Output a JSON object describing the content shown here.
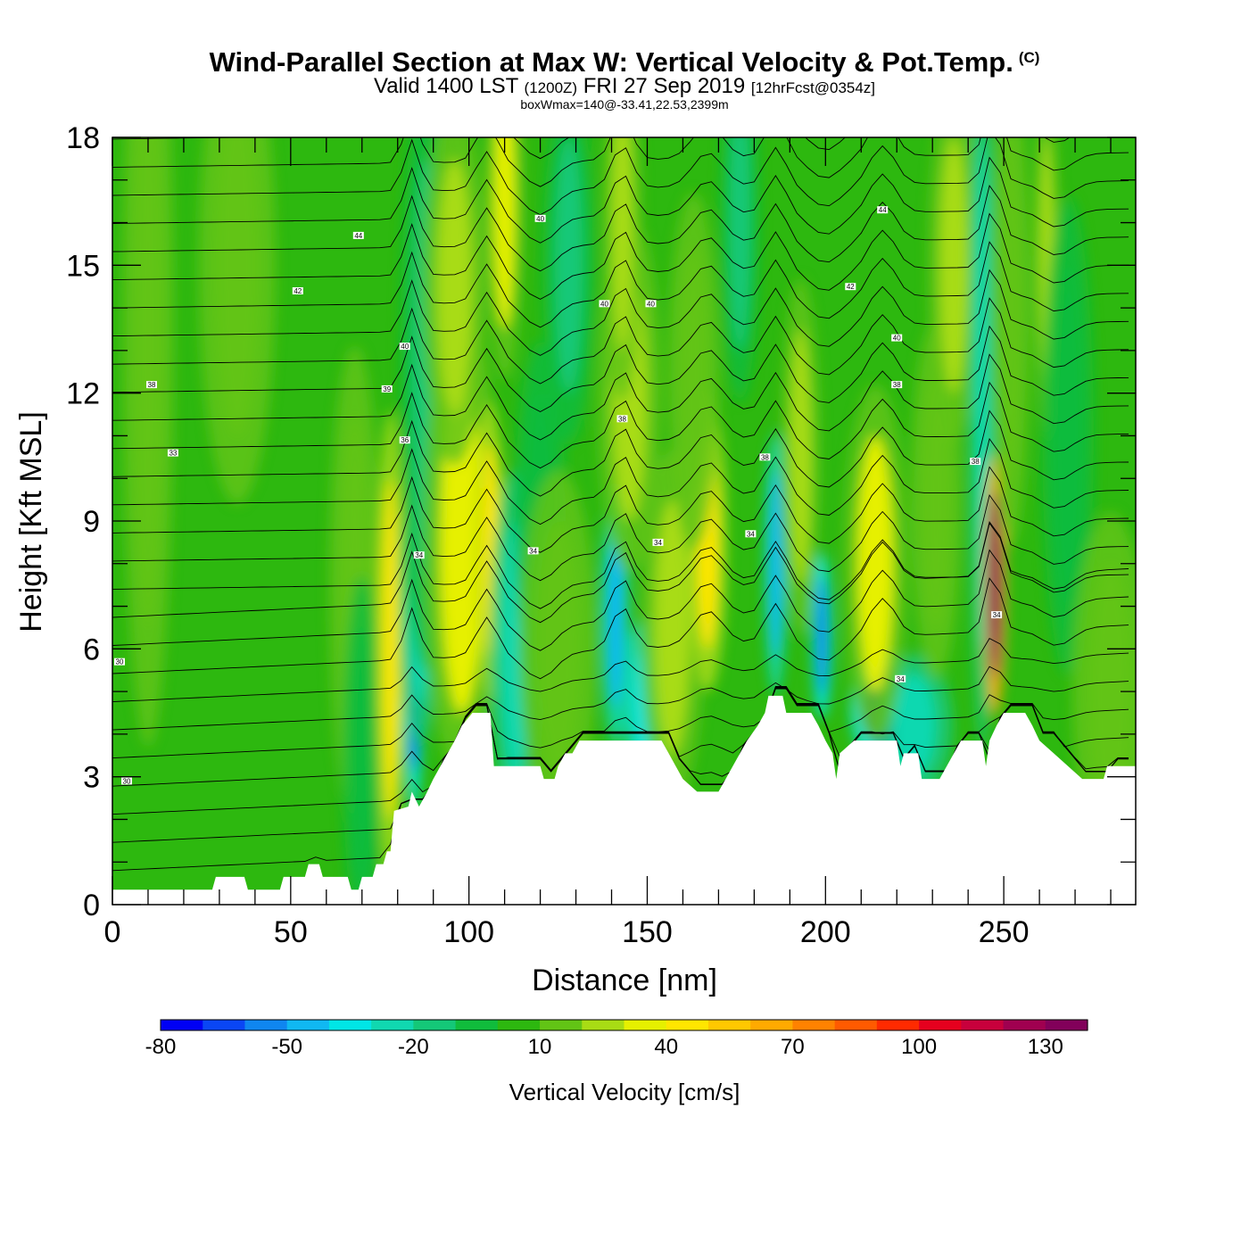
{
  "header": {
    "title": "Wind-Parallel Section at Max W: Vertical Velocity & Pot.Temp.",
    "copyright": "(C)",
    "valid_prefix": "Valid 1400 LST",
    "valid_zulu": "(1200Z)",
    "valid_date": "FRI 27 Sep 2019",
    "forecast": "[12hrFcst@0354z]",
    "boxinfo": "boxWmax=140@-33.41,22.53,2399m"
  },
  "chart_data": {
    "type": "heatmap",
    "title": "Wind-Parallel Section at Max W: Vertical Velocity & Pot.Temp.",
    "xlabel": "Distance [nm]",
    "ylabel": "Height [Kft MSL]",
    "xlim": [
      0,
      287
    ],
    "ylim": [
      0,
      18
    ],
    "xticks": [
      "0",
      "50",
      "100",
      "150",
      "200",
      "250"
    ],
    "yticks": [
      "0",
      "3",
      "6",
      "9",
      "12",
      "15",
      "18"
    ],
    "colorbar": {
      "label": "Vertical Velocity [cm/s]",
      "ticks": [
        "-80",
        "-50",
        "-20",
        "10",
        "40",
        "70",
        "100",
        "130"
      ],
      "levels": [
        -80,
        -70,
        -60,
        -50,
        -40,
        -30,
        -20,
        -10,
        0,
        10,
        20,
        30,
        40,
        50,
        60,
        70,
        80,
        90,
        100,
        110,
        120,
        130,
        140
      ],
      "colors": [
        "#0000f5",
        "#0a46f5",
        "#0f86f0",
        "#10b8f2",
        "#00e6e6",
        "#10d8b0",
        "#14c878",
        "#10bc3c",
        "#2db80f",
        "#62c415",
        "#a8dc14",
        "#e6f000",
        "#ffe600",
        "#ffc800",
        "#ffaa00",
        "#ff8200",
        "#ff5a00",
        "#ff2a00",
        "#e6001e",
        "#c8003c",
        "#a00050",
        "#82005a"
      ]
    },
    "background_value": 5,
    "features": [
      {
        "x": 10,
        "z": 13.5,
        "w": 4,
        "h": 7,
        "value": 12
      },
      {
        "x": 35,
        "z": 15,
        "w": 6,
        "h": 4,
        "value": 12
      },
      {
        "x": 68,
        "z": 7.5,
        "w": 4,
        "h": 4,
        "value": 13
      },
      {
        "x": 70,
        "z": 3.5,
        "w": 3,
        "h": 3,
        "value": -5
      },
      {
        "x": 78,
        "z": 6,
        "w": 2.2,
        "h": 4,
        "value": 45
      },
      {
        "x": 84.5,
        "z": 5.3,
        "w": 1.6,
        "h": 2.2,
        "value": -68
      },
      {
        "x": 86,
        "z": 7.2,
        "w": 3,
        "h": 2.5,
        "value": -25
      },
      {
        "x": 88,
        "z": 12.5,
        "w": 4,
        "h": 5,
        "value": -15
      },
      {
        "x": 97,
        "z": 7.2,
        "w": 3.5,
        "h": 2.2,
        "value": 58
      },
      {
        "x": 98,
        "z": 8.5,
        "w": 6,
        "h": 4,
        "value": 35
      },
      {
        "x": 96,
        "z": 14.5,
        "w": 5,
        "h": 3,
        "value": 22
      },
      {
        "x": 106,
        "z": 8.3,
        "w": 2.2,
        "h": 2.5,
        "value": 42
      },
      {
        "x": 110,
        "z": 16.5,
        "w": 3,
        "h": 3,
        "value": 38
      },
      {
        "x": 113,
        "z": 6,
        "w": 4,
        "h": 3,
        "value": -22
      },
      {
        "x": 120,
        "z": 9,
        "w": 4,
        "h": 3,
        "value": -10
      },
      {
        "x": 125,
        "z": 6,
        "w": 6,
        "h": 3,
        "value": 15
      },
      {
        "x": 128,
        "z": 15,
        "w": 4,
        "h": 3,
        "value": -15
      },
      {
        "x": 141,
        "z": 6.8,
        "w": 2.2,
        "h": 2.2,
        "value": -48
      },
      {
        "x": 150,
        "z": 4.8,
        "w": 4,
        "h": 1.4,
        "value": -38
      },
      {
        "x": 145,
        "z": 12,
        "w": 5,
        "h": 3,
        "value": 20
      },
      {
        "x": 143,
        "z": 16,
        "w": 3,
        "h": 3,
        "value": 28
      },
      {
        "x": 157,
        "z": 6.5,
        "w": 5,
        "h": 3,
        "value": 22
      },
      {
        "x": 167,
        "z": 8.5,
        "w": 3,
        "h": 2.5,
        "value": 45
      },
      {
        "x": 163,
        "z": 12.5,
        "w": 4,
        "h": 3,
        "value": 15
      },
      {
        "x": 176,
        "z": 16,
        "w": 3,
        "h": 3,
        "value": -18
      },
      {
        "x": 186,
        "z": 8,
        "w": 1.8,
        "h": 2.2,
        "value": -50
      },
      {
        "x": 193,
        "z": 10.5,
        "w": 3,
        "h": 3,
        "value": 22
      },
      {
        "x": 199,
        "z": 6.3,
        "w": 1.6,
        "h": 1.4,
        "value": -55
      },
      {
        "x": 216,
        "z": 4.6,
        "w": 5,
        "h": 1,
        "value": -65
      },
      {
        "x": 225,
        "z": 4.2,
        "w": 6,
        "h": 1.2,
        "value": -30
      },
      {
        "x": 214,
        "z": 8,
        "w": 5,
        "h": 3,
        "value": 32
      },
      {
        "x": 231,
        "z": 9.5,
        "w": 4,
        "h": 3,
        "value": 15
      },
      {
        "x": 236,
        "z": 15,
        "w": 4,
        "h": 3,
        "value": 22
      },
      {
        "x": 244,
        "z": 12,
        "w": 2,
        "h": 6,
        "value": -25
      },
      {
        "x": 247.5,
        "z": 7.5,
        "w": 1.8,
        "h": 2.2,
        "value": 132
      },
      {
        "x": 252,
        "z": 14,
        "w": 3,
        "h": 4,
        "value": 18
      },
      {
        "x": 262,
        "z": 15,
        "w": 2,
        "h": 3,
        "value": 25
      },
      {
        "x": 268,
        "z": 11,
        "w": 4,
        "h": 4,
        "value": -10
      },
      {
        "x": 280,
        "z": 5,
        "w": 6,
        "h": 3,
        "value": 10
      }
    ],
    "terrain": [
      [
        0,
        0.35
      ],
      [
        28,
        0.35
      ],
      [
        29,
        0.65
      ],
      [
        37,
        0.65
      ],
      [
        38,
        0.35
      ],
      [
        47,
        0.35
      ],
      [
        48,
        0.65
      ],
      [
        54,
        0.65
      ],
      [
        55,
        0.95
      ],
      [
        58,
        0.95
      ],
      [
        59,
        0.65
      ],
      [
        66,
        0.65
      ],
      [
        67,
        0.35
      ],
      [
        69,
        0.35
      ],
      [
        70,
        0.65
      ],
      [
        73,
        0.65
      ],
      [
        74,
        0.95
      ],
      [
        76,
        0.95
      ],
      [
        77,
        1.25
      ],
      [
        78,
        1.25
      ],
      [
        79,
        2.2
      ],
      [
        83,
        2.3
      ],
      [
        84,
        2.65
      ],
      [
        86,
        2.3
      ],
      [
        88,
        2.6
      ],
      [
        90,
        2.95
      ],
      [
        92,
        3.25
      ],
      [
        94,
        3.55
      ],
      [
        96,
        3.85
      ],
      [
        98,
        4.2
      ],
      [
        101,
        4.5
      ],
      [
        106,
        4.5
      ],
      [
        107,
        3.25
      ],
      [
        120,
        3.25
      ],
      [
        121,
        2.95
      ],
      [
        124,
        2.95
      ],
      [
        125,
        3.25
      ],
      [
        127,
        3.55
      ],
      [
        129,
        3.55
      ],
      [
        131,
        3.85
      ],
      [
        154,
        3.85
      ],
      [
        156,
        3.55
      ],
      [
        158,
        3.25
      ],
      [
        160,
        2.95
      ],
      [
        164,
        2.65
      ],
      [
        170,
        2.65
      ],
      [
        172,
        2.95
      ],
      [
        174,
        3.25
      ],
      [
        176,
        3.55
      ],
      [
        178,
        3.85
      ],
      [
        181,
        4.2
      ],
      [
        183,
        4.5
      ],
      [
        184,
        4.9
      ],
      [
        188,
        4.9
      ],
      [
        189,
        4.5
      ],
      [
        196,
        4.5
      ],
      [
        198,
        4.2
      ],
      [
        200,
        3.85
      ],
      [
        202,
        3.55
      ],
      [
        203,
        2.95
      ],
      [
        204,
        3.55
      ],
      [
        208,
        3.85
      ],
      [
        220,
        3.85
      ],
      [
        221,
        3.25
      ],
      [
        222,
        3.55
      ],
      [
        226,
        3.55
      ],
      [
        227,
        2.95
      ],
      [
        232,
        2.95
      ],
      [
        234,
        3.25
      ],
      [
        236,
        3.55
      ],
      [
        238,
        3.85
      ],
      [
        244,
        3.85
      ],
      [
        245,
        3.25
      ],
      [
        246,
        3.85
      ],
      [
        248,
        4.2
      ],
      [
        250,
        4.5
      ],
      [
        256,
        4.5
      ],
      [
        258,
        4.2
      ],
      [
        260,
        3.85
      ],
      [
        264,
        3.55
      ],
      [
        268,
        3.25
      ],
      [
        272,
        2.95
      ],
      [
        278,
        2.95
      ],
      [
        279,
        3.25
      ],
      [
        287,
        3.25
      ]
    ],
    "contour_labels": [
      {
        "text": "42",
        "x": 52,
        "z": 14.4
      },
      {
        "text": "44",
        "x": 69,
        "z": 15.7
      },
      {
        "text": "38",
        "x": 11,
        "z": 12.2
      },
      {
        "text": "33",
        "x": 17,
        "z": 10.6
      },
      {
        "text": "30",
        "x": 2,
        "z": 5.7
      },
      {
        "text": "30",
        "x": 4,
        "z": 2.9
      },
      {
        "text": "40",
        "x": 82,
        "z": 13.1
      },
      {
        "text": "39",
        "x": 77,
        "z": 12.1
      },
      {
        "text": "36",
        "x": 82,
        "z": 10.9
      },
      {
        "text": "34",
        "x": 86,
        "z": 8.2
      },
      {
        "text": "40",
        "x": 120,
        "z": 16.1
      },
      {
        "text": "34",
        "x": 118,
        "z": 8.3
      },
      {
        "text": "40",
        "x": 138,
        "z": 14.1
      },
      {
        "text": "40",
        "x": 151,
        "z": 14.1
      },
      {
        "text": "38",
        "x": 143,
        "z": 11.4
      },
      {
        "text": "34",
        "x": 153,
        "z": 8.5
      },
      {
        "text": "34",
        "x": 179,
        "z": 8.7
      },
      {
        "text": "38",
        "x": 183,
        "z": 10.5
      },
      {
        "text": "44",
        "x": 216,
        "z": 16.3
      },
      {
        "text": "42",
        "x": 207,
        "z": 14.5
      },
      {
        "text": "40",
        "x": 220,
        "z": 13.3
      },
      {
        "text": "38",
        "x": 220,
        "z": 12.2
      },
      {
        "text": "38",
        "x": 242,
        "z": 10.4
      },
      {
        "text": "34",
        "x": 221,
        "z": 5.3
      },
      {
        "text": "34",
        "x": 248,
        "z": 6.8
      }
    ]
  }
}
